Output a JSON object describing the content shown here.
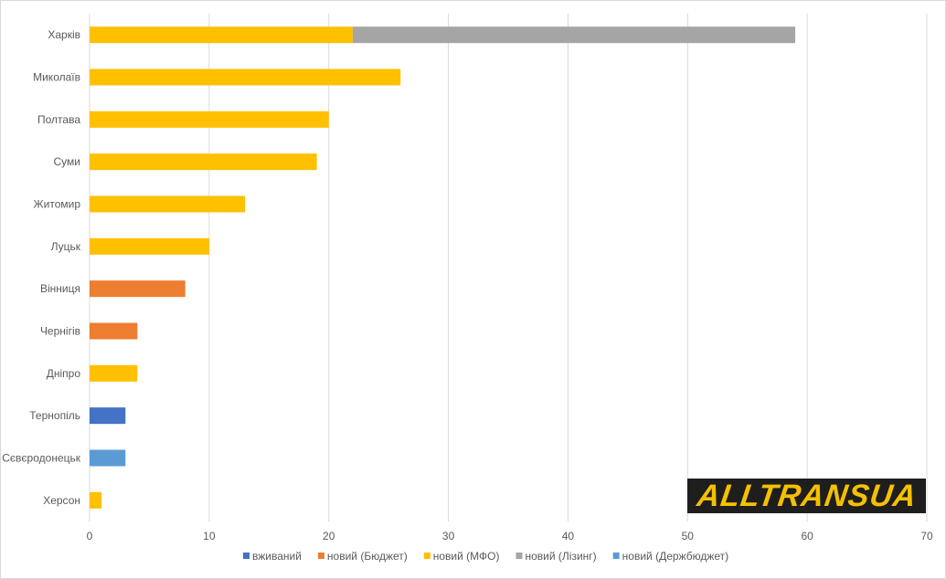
{
  "chart_data": {
    "type": "bar",
    "orientation": "horizontal",
    "stacked": true,
    "categories": [
      "Харків",
      "Миколаїв",
      "Полтава",
      "Суми",
      "Житомир",
      "Луцьк",
      "Вінниця",
      "Чернігів",
      "Дніпро",
      "Тернопіль",
      "Сєвєродонецьк",
      "Херсон"
    ],
    "series": [
      {
        "name": "вживаний",
        "color": "#4472c4",
        "values": [
          0,
          0,
          0,
          0,
          0,
          0,
          0,
          0,
          0,
          3,
          0,
          0
        ]
      },
      {
        "name": "новий (Бюджет)",
        "color": "#ed7d31",
        "values": [
          0,
          0,
          0,
          0,
          0,
          0,
          8,
          4,
          0,
          0,
          0,
          0
        ]
      },
      {
        "name": "новий (МФО)",
        "color": "#ffc000",
        "values": [
          22,
          26,
          20,
          19,
          13,
          10,
          0,
          0,
          4,
          0,
          0,
          1
        ]
      },
      {
        "name": "новий (Лізинг)",
        "color": "#a5a5a5",
        "values": [
          37,
          0,
          0,
          0,
          0,
          0,
          0,
          0,
          0,
          0,
          0,
          0
        ]
      },
      {
        "name": "новий (Держбюджет)",
        "color": "#5b9bd5",
        "values": [
          0,
          0,
          0,
          0,
          0,
          0,
          0,
          0,
          0,
          0,
          3,
          0
        ]
      }
    ],
    "xlim": [
      0,
      70
    ],
    "xticks": [
      "0",
      "10",
      "20",
      "30",
      "40",
      "50",
      "60",
      "70"
    ],
    "grid": true,
    "legend_position": "bottom"
  },
  "logo": {
    "text": "ALLTRANSUA"
  }
}
